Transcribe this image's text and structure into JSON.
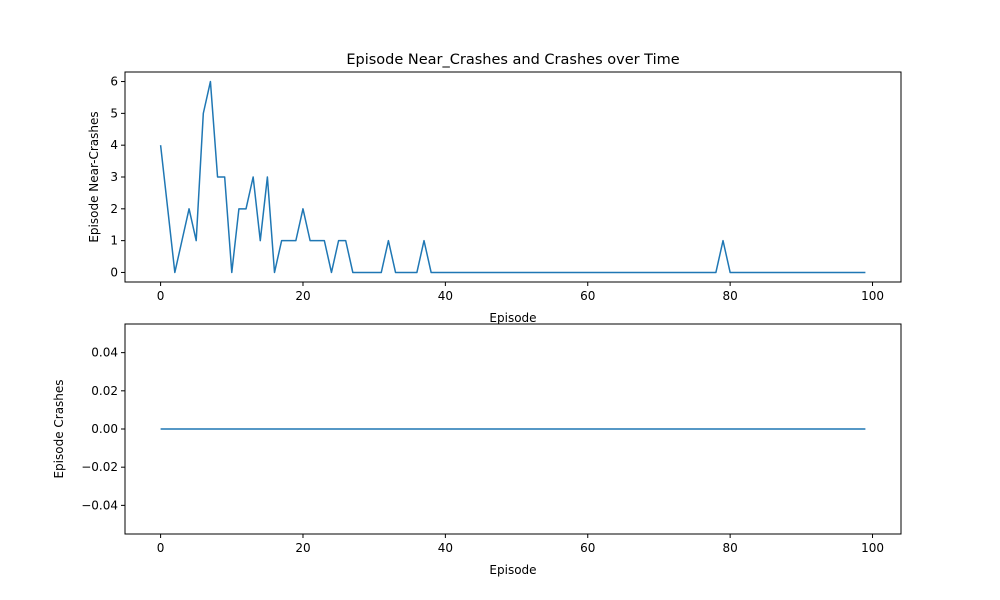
{
  "chart_data": [
    {
      "type": "line",
      "title": "Episode Near_Crashes and Crashes over Time",
      "xlabel": "Episode",
      "ylabel": "Episode Near-Crashes",
      "xlim": [
        -5,
        104
      ],
      "ylim": [
        -0.3,
        6.3
      ],
      "xticks": [
        0,
        20,
        40,
        60,
        80,
        100
      ],
      "yticks": [
        0,
        1,
        2,
        3,
        4,
        5,
        6
      ],
      "ytick_labels": [
        "0",
        "1",
        "2",
        "3",
        "4",
        "5",
        "6"
      ],
      "grid": false,
      "color": "#1f77b4",
      "x_start": 0,
      "values": [
        4,
        2,
        0,
        1,
        2,
        1,
        5,
        6,
        3,
        3,
        0,
        2,
        2,
        3,
        1,
        3,
        0,
        1,
        1,
        1,
        2,
        1,
        1,
        1,
        0,
        1,
        1,
        0,
        0,
        0,
        0,
        0,
        1,
        0,
        0,
        0,
        0,
        1,
        0,
        0,
        0,
        0,
        0,
        0,
        0,
        0,
        0,
        0,
        0,
        0,
        0,
        0,
        0,
        0,
        0,
        0,
        0,
        0,
        0,
        0,
        0,
        0,
        0,
        0,
        0,
        0,
        0,
        0,
        0,
        0,
        0,
        0,
        0,
        0,
        0,
        0,
        0,
        0,
        0,
        1,
        0,
        0,
        0,
        0,
        0,
        0,
        0,
        0,
        0,
        0,
        0,
        0,
        0,
        0,
        0,
        0,
        0,
        0,
        0,
        0
      ]
    },
    {
      "type": "line",
      "title": "",
      "xlabel": "Episode",
      "ylabel": "Episode Crashes",
      "xlim": [
        -5,
        104
      ],
      "ylim": [
        -0.055,
        0.055
      ],
      "xticks": [
        0,
        20,
        40,
        60,
        80,
        100
      ],
      "yticks": [
        -0.04,
        -0.02,
        0.0,
        0.02,
        0.04
      ],
      "ytick_labels": [
        "−0.04",
        "−0.02",
        "0.00",
        "0.02",
        "0.04"
      ],
      "grid": false,
      "color": "#1f77b4",
      "x_start": 0,
      "values": [
        0,
        0,
        0,
        0,
        0,
        0,
        0,
        0,
        0,
        0,
        0,
        0,
        0,
        0,
        0,
        0,
        0,
        0,
        0,
        0,
        0,
        0,
        0,
        0,
        0,
        0,
        0,
        0,
        0,
        0,
        0,
        0,
        0,
        0,
        0,
        0,
        0,
        0,
        0,
        0,
        0,
        0,
        0,
        0,
        0,
        0,
        0,
        0,
        0,
        0,
        0,
        0,
        0,
        0,
        0,
        0,
        0,
        0,
        0,
        0,
        0,
        0,
        0,
        0,
        0,
        0,
        0,
        0,
        0,
        0,
        0,
        0,
        0,
        0,
        0,
        0,
        0,
        0,
        0,
        0,
        0,
        0,
        0,
        0,
        0,
        0,
        0,
        0,
        0,
        0,
        0,
        0,
        0,
        0,
        0,
        0,
        0,
        0,
        0,
        0
      ]
    }
  ]
}
